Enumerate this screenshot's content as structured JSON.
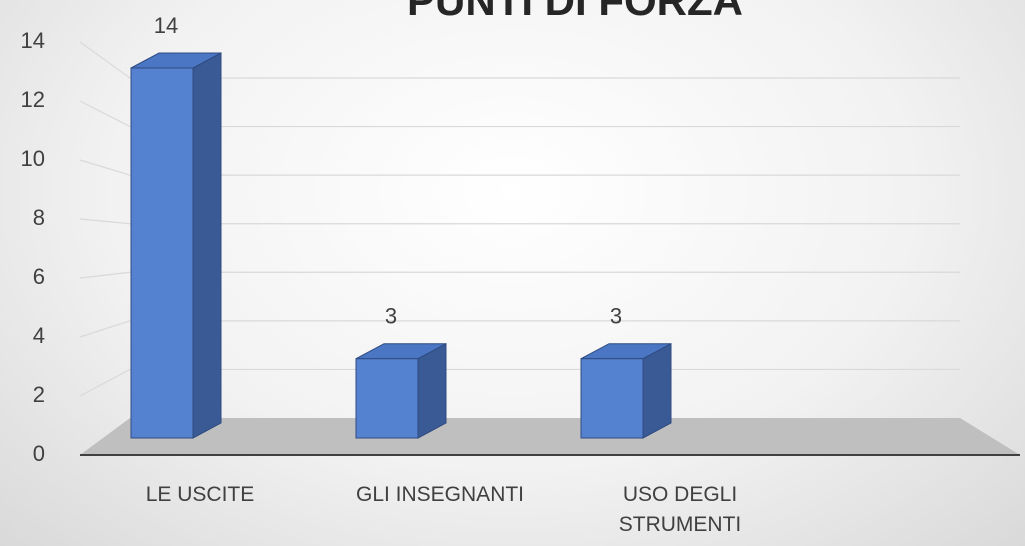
{
  "chart_data": {
    "type": "bar",
    "title": "PUNTI DI FORZA",
    "categories": [
      "LE USCITE",
      "GLI INSEGNANTI",
      "USO DEGLI STRUMENTI"
    ],
    "values": [
      14,
      3,
      3
    ],
    "color": "#5582d0",
    "ylim": [
      0,
      14
    ],
    "yticks": [
      0,
      2,
      4,
      6,
      8,
      10,
      12,
      14
    ],
    "grid": true
  }
}
